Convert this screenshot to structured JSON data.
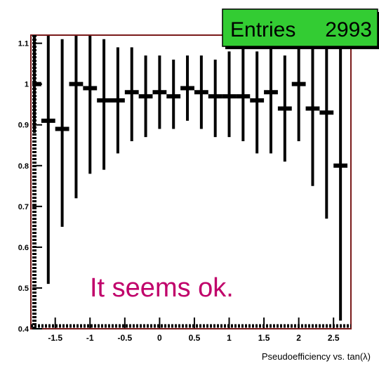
{
  "stats_box": {
    "label": "Entries",
    "value": "2993"
  },
  "annotation": "It seems ok.",
  "colors": {
    "background": "#ffffff",
    "data": "#000000",
    "frame": "#7a1a1a",
    "stats_box_fill": "#33cc33",
    "annotation": "#c0006a"
  },
  "chart_data": {
    "type": "scatter",
    "title": "",
    "xlabel": "Pseudoefficiency vs. tan(λ)",
    "ylabel": "",
    "xlim": [
      -1.85,
      2.75
    ],
    "ylim": [
      0.4,
      1.12
    ],
    "x_ticks": [
      -1.5,
      -1,
      -0.5,
      0,
      0.5,
      1,
      1.5,
      2,
      2.5
    ],
    "x_tick_labels": [
      "-1.5",
      "-1",
      "-0.5",
      "0",
      "0.5",
      "1",
      "1.5",
      "2",
      "2.5"
    ],
    "y_ticks": [
      0.4,
      0.5,
      0.6,
      0.7,
      0.8,
      0.9,
      1.0,
      1.1
    ],
    "y_tick_labels": [
      "0.4",
      "0.5",
      "0.6",
      "0.7",
      "0.8",
      "0.9",
      "1",
      "1.1"
    ],
    "bin_half_width": 0.1,
    "grid": false,
    "legend": "none",
    "series": [
      {
        "points": [
          {
            "x": -1.8,
            "y": 1.0,
            "lo": 0.88,
            "hi": 1.12
          },
          {
            "x": -1.6,
            "y": 0.91,
            "lo": 0.51,
            "hi": 1.12
          },
          {
            "x": -1.4,
            "y": 0.89,
            "lo": 0.65,
            "hi": 1.11
          },
          {
            "x": -1.2,
            "y": 1.0,
            "lo": 0.72,
            "hi": 1.12
          },
          {
            "x": -1.0,
            "y": 0.99,
            "lo": 0.78,
            "hi": 1.12
          },
          {
            "x": -0.8,
            "y": 0.96,
            "lo": 0.79,
            "hi": 1.11
          },
          {
            "x": -0.6,
            "y": 0.96,
            "lo": 0.83,
            "hi": 1.09
          },
          {
            "x": -0.4,
            "y": 0.98,
            "lo": 0.86,
            "hi": 1.09
          },
          {
            "x": -0.2,
            "y": 0.97,
            "lo": 0.87,
            "hi": 1.07
          },
          {
            "x": 0.0,
            "y": 0.98,
            "lo": 0.89,
            "hi": 1.07
          },
          {
            "x": 0.2,
            "y": 0.97,
            "lo": 0.89,
            "hi": 1.06
          },
          {
            "x": 0.4,
            "y": 0.99,
            "lo": 0.91,
            "hi": 1.07
          },
          {
            "x": 0.6,
            "y": 0.98,
            "lo": 0.89,
            "hi": 1.07
          },
          {
            "x": 0.8,
            "y": 0.97,
            "lo": 0.87,
            "hi": 1.06
          },
          {
            "x": 1.0,
            "y": 0.97,
            "lo": 0.87,
            "hi": 1.08
          },
          {
            "x": 1.2,
            "y": 0.97,
            "lo": 0.86,
            "hi": 1.09
          },
          {
            "x": 1.4,
            "y": 0.96,
            "lo": 0.83,
            "hi": 1.08
          },
          {
            "x": 1.6,
            "y": 0.98,
            "lo": 0.83,
            "hi": 1.12
          },
          {
            "x": 1.8,
            "y": 0.94,
            "lo": 0.81,
            "hi": 1.07
          },
          {
            "x": 2.0,
            "y": 1.0,
            "lo": 0.86,
            "hi": 1.12
          },
          {
            "x": 2.2,
            "y": 0.94,
            "lo": 0.75,
            "hi": 1.12
          },
          {
            "x": 2.4,
            "y": 0.93,
            "lo": 0.67,
            "hi": 1.12
          },
          {
            "x": 2.6,
            "y": 0.8,
            "lo": 0.42,
            "hi": 1.12
          }
        ]
      }
    ]
  }
}
